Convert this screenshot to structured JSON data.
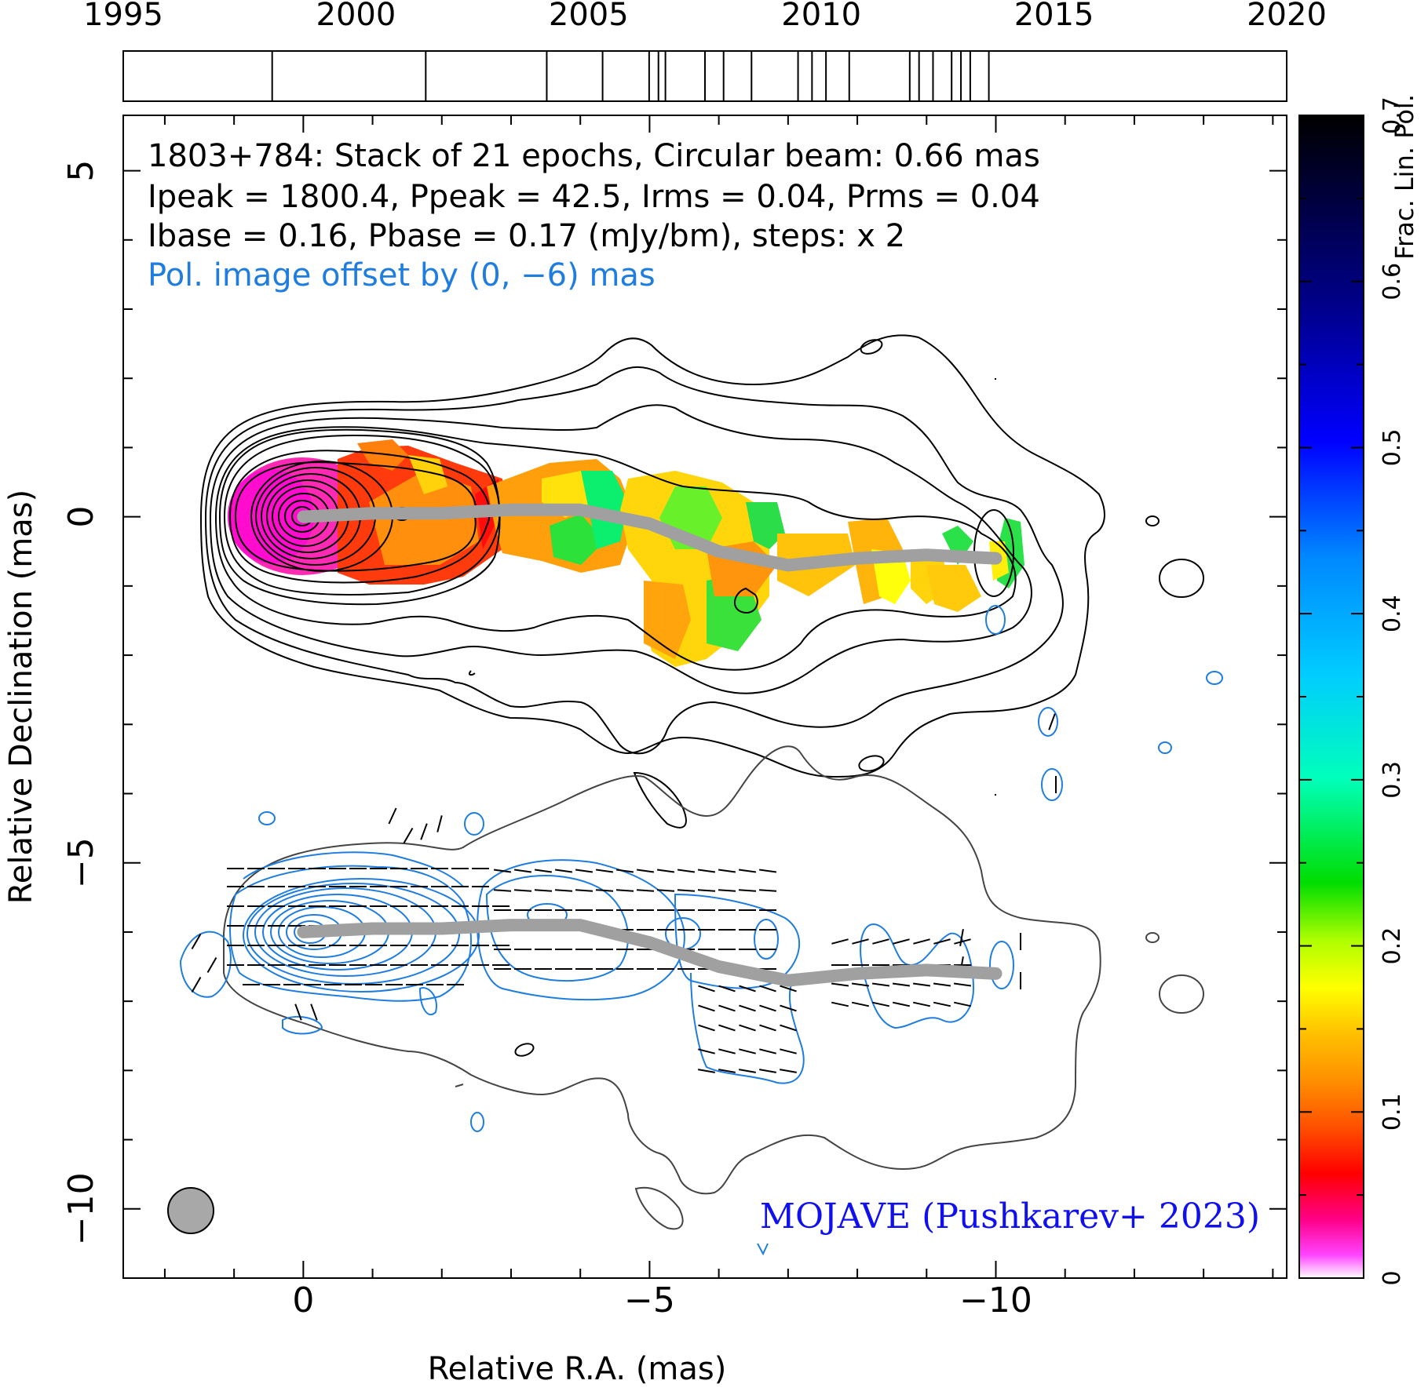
{
  "chart_data": {
    "type": "heatmap",
    "title_lines": [
      "1803+784: Stack of 21 epochs, Circular beam: 0.66 mas",
      "Ipeak = 1800.4, Ppeak = 42.5, Irms = 0.04, Prms = 0.04",
      "Ibase = 0.16, Pbase = 0.17 (mJy/bm), steps: x 2"
    ],
    "offset_note": "Pol. image offset by (0, −6) mas",
    "credit": "MOJAVE (Pushkarev+ 2023)",
    "xlabel": "Relative R.A. (mas)",
    "ylabel": "Relative Declination (mas)",
    "xlim": [
      2.6,
      -14.2
    ],
    "ylim": [
      -11.0,
      5.8
    ],
    "x_ticks": [
      0,
      -5,
      -10
    ],
    "x_tick_labels": [
      "0",
      "−5",
      "−10"
    ],
    "y_ticks": [
      5,
      0,
      -5,
      -10
    ],
    "y_tick_labels": [
      "5",
      "0",
      "−5",
      "−10"
    ],
    "colorbar": {
      "label": "Frac. Lin. Pol.",
      "range": [
        0,
        0.7
      ],
      "ticks": [
        0,
        0.1,
        0.2,
        0.3,
        0.4,
        0.5,
        0.6,
        0.7
      ],
      "tick_labels": [
        "0",
        "0.1",
        "0.2",
        "0.3",
        "0.4",
        "0.5",
        "0.6",
        "0.7"
      ]
    },
    "epoch_axis": {
      "range": [
        1995,
        2020
      ],
      "tick_labels": [
        "1995",
        "2000",
        "2005",
        "2010",
        "2015",
        "2020"
      ],
      "ticks": [
        1995,
        2000,
        2005,
        2010,
        2015,
        2020
      ],
      "epochs": [
        1998.2,
        2001.5,
        2004.1,
        2005.3,
        2006.3,
        2006.5,
        2006.65,
        2007.5,
        2007.9,
        2008.5,
        2009.5,
        2009.8,
        2010.1,
        2010.6,
        2011.9,
        2012.1,
        2012.4,
        2012.8,
        2013.0,
        2013.2,
        2013.6
      ]
    },
    "ridgeline_total": [
      [
        0,
        0
      ],
      [
        -1,
        0.05
      ],
      [
        -2,
        0.05
      ],
      [
        -3,
        0.1
      ],
      [
        -4,
        0.1
      ],
      [
        -5,
        -0.1
      ],
      [
        -6,
        -0.5
      ],
      [
        -7,
        -0.7
      ],
      [
        -8,
        -0.6
      ],
      [
        -9,
        -0.55
      ],
      [
        -10,
        -0.6
      ]
    ],
    "ridgeline_pol": [
      [
        0,
        -6.0
      ],
      [
        -1,
        -5.95
      ],
      [
        -2,
        -5.95
      ],
      [
        -3,
        -5.9
      ],
      [
        -4,
        -5.9
      ],
      [
        -5,
        -6.15
      ],
      [
        -6,
        -6.5
      ],
      [
        -7,
        -6.7
      ],
      [
        -8,
        -6.6
      ],
      [
        -9,
        -6.55
      ],
      [
        -10,
        -6.6
      ]
    ],
    "beam_diameter_mas": 0.66,
    "core_position": [
      0,
      0
    ]
  }
}
